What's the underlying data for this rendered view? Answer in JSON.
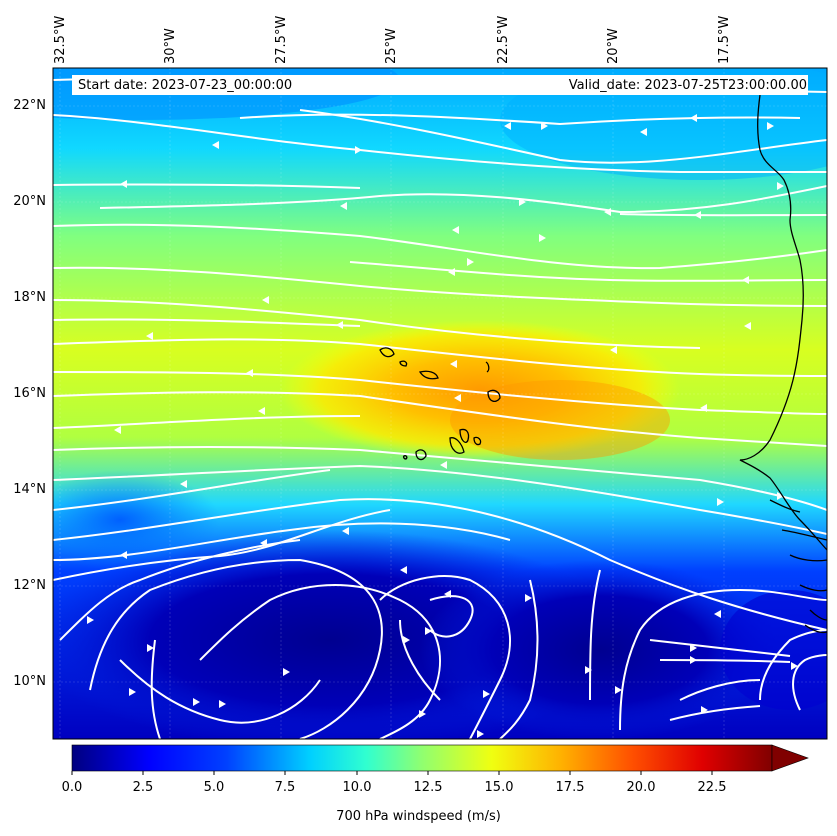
{
  "header": {
    "start_date": "Start date: 2023-07-23_00:00:00",
    "valid_date": "Valid_date: 2023-07-25T23:00:00.00"
  },
  "axes": {
    "longitude_labels": [
      "32.5°W",
      "30°W",
      "27.5°W",
      "25°W",
      "22.5°W",
      "20°W",
      "17.5°W"
    ],
    "latitude_labels": [
      "22°N",
      "20°N",
      "18°N",
      "16°N",
      "14°N",
      "12°N",
      "10°N"
    ]
  },
  "colorbar": {
    "label": "700 hPa windspeed (m/s)",
    "tick_labels": [
      "0.0",
      "2.5",
      "5.0",
      "7.5",
      "10.0",
      "12.5",
      "15.0",
      "17.5",
      "20.0",
      "22.5"
    ],
    "range": [
      0,
      25
    ],
    "extend": "max",
    "colormap": [
      "#00007f",
      "#0000ff",
      "#007fff",
      "#00ffff",
      "#7fff7f",
      "#ffff00",
      "#ff7f00",
      "#ff0000",
      "#7f0000"
    ]
  },
  "map": {
    "field": "700 hPa windspeed",
    "streamline_color": "#ffffff",
    "coastline_color": "#000000"
  }
}
